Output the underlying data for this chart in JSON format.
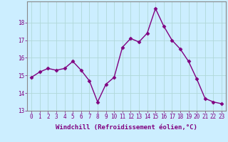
{
  "x": [
    0,
    1,
    2,
    3,
    4,
    5,
    6,
    7,
    8,
    9,
    10,
    11,
    12,
    13,
    14,
    15,
    16,
    17,
    18,
    19,
    20,
    21,
    22,
    23
  ],
  "y": [
    14.9,
    15.2,
    15.4,
    15.3,
    15.4,
    15.8,
    15.3,
    14.7,
    13.5,
    14.5,
    14.9,
    16.6,
    17.1,
    16.9,
    17.4,
    18.8,
    17.8,
    17.0,
    16.5,
    15.8,
    14.8,
    13.7,
    13.5,
    13.4
  ],
  "line_color": "#800080",
  "marker": "D",
  "marker_size": 2.5,
  "bg_color": "#cceeff",
  "grid_color": "#b0d8d8",
  "xlabel": "Windchill (Refroidissement éolien,°C)",
  "ylim": [
    13.0,
    19.2
  ],
  "xlim_min": -0.5,
  "xlim_max": 23.5,
  "yticks": [
    13,
    14,
    15,
    16,
    17,
    18
  ],
  "xticks": [
    0,
    1,
    2,
    3,
    4,
    5,
    6,
    7,
    8,
    9,
    10,
    11,
    12,
    13,
    14,
    15,
    16,
    17,
    18,
    19,
    20,
    21,
    22,
    23
  ],
  "tick_color": "#800080",
  "label_fontsize": 6.5,
  "tick_fontsize": 5.5,
  "spine_color": "#888888",
  "linewidth": 1.0
}
